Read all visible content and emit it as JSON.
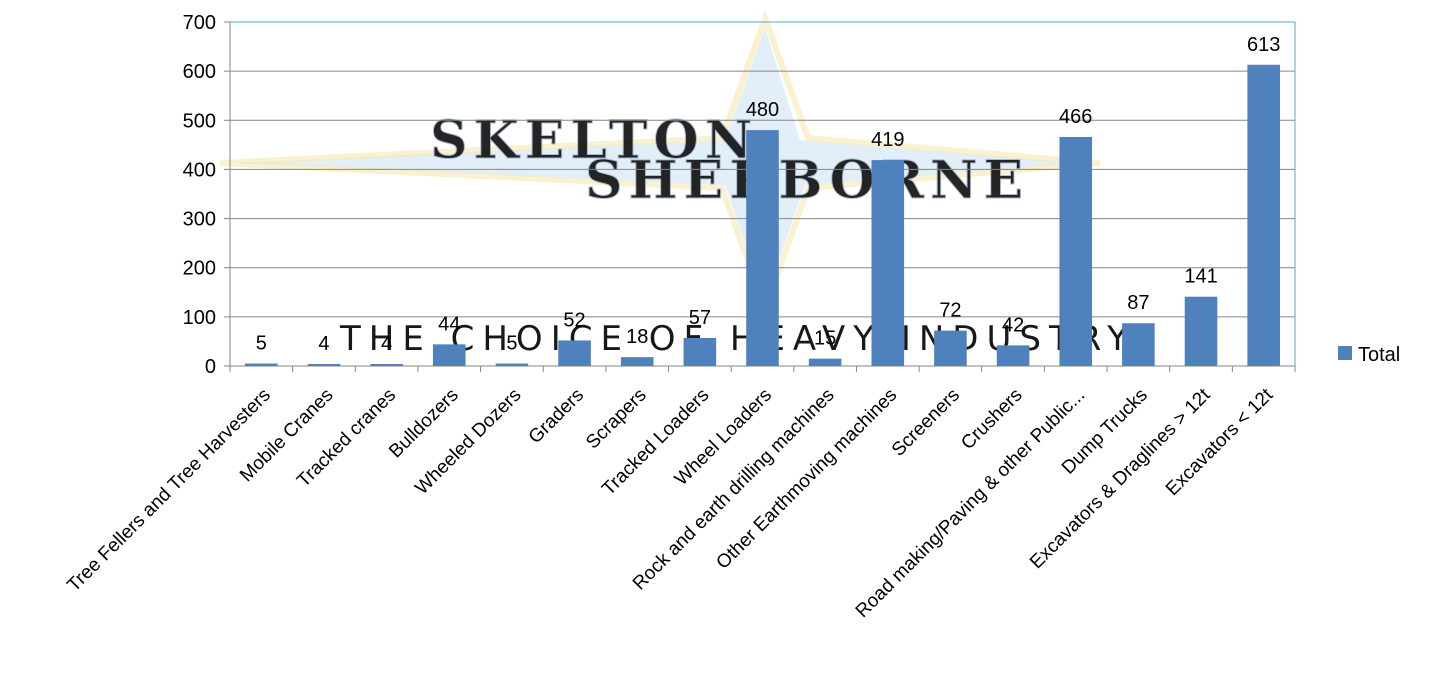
{
  "chart_data": {
    "type": "bar",
    "title": "",
    "xlabel": "",
    "ylabel": "",
    "ylim": [
      0,
      700
    ],
    "yticks": [
      0,
      100,
      200,
      300,
      400,
      500,
      600,
      700
    ],
    "grid": true,
    "legend_position": "right",
    "categories": [
      "Tree Fellers and Tree Harvesters",
      "Mobile Cranes",
      "Tracked cranes",
      "Bulldozers",
      "Wheeled Dozers",
      "Graders",
      "Scrapers",
      "Tracked Loaders",
      "Wheel Loaders",
      "Rock and earth drilling machines",
      "Other Earthmoving machines",
      "Screeners",
      "Crushers",
      "Road making/Paving & other Public...",
      "Dump Trucks",
      "Excavators & Draglines > 12t",
      "Excavators < 12t"
    ],
    "series": [
      {
        "name": "Total",
        "color": "#4f81bd",
        "values": [
          5,
          4,
          4,
          44,
          5,
          52,
          18,
          57,
          480,
          15,
          419,
          72,
          42,
          466,
          87,
          141,
          613
        ]
      }
    ]
  },
  "watermark": {
    "line1": "SKELTON",
    "line2": "SHERBORNE",
    "tagline": "THE CHOICE OF HEAVY INDUSTRY"
  }
}
